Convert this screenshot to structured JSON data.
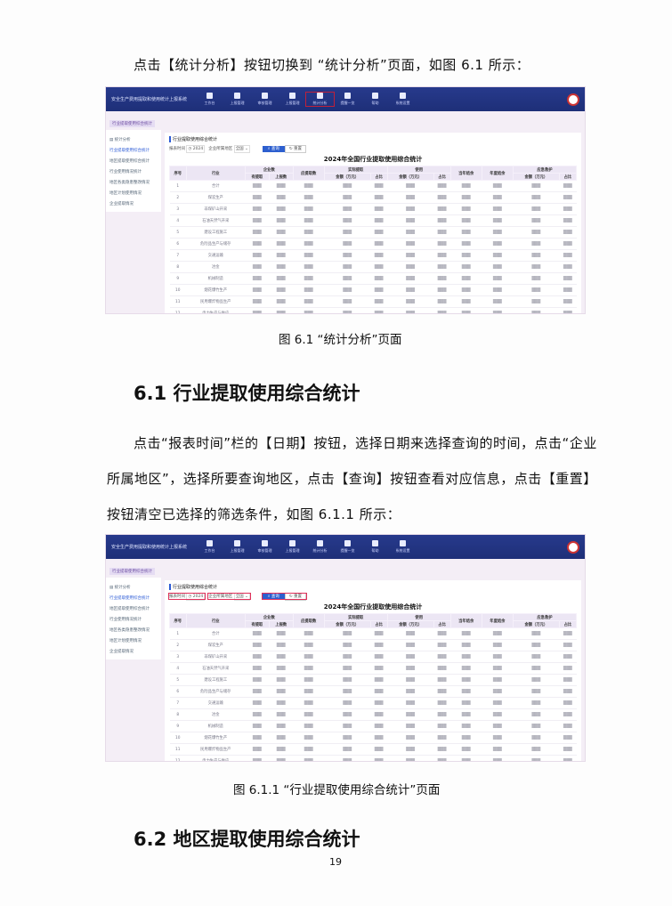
{
  "intro_text": "点击【统计分析】按钮切换到 “统计分析”页面，如图 6.1 所示：",
  "figure1_caption": "图 6.1 “统计分析”页面",
  "section1_heading": "6.1 行业提取使用综合统计",
  "section1_paragraph": [
    "点击“报表时间”栏的【日期】按钮，选择日期来选择查询的时间，点击“企业",
    "所属地区”，选择所要查询地区，点击【查询】按钮查看对应信息，点击【重置】",
    "按钮清空已选择的筛选条件，如图 6.1.1 所示："
  ],
  "figure2_caption": "图 6.1.1 “行业提取使用综合统计”页面",
  "section2_heading": "6.2 地区提取使用综合统计",
  "page_number": "19",
  "app": {
    "system_title": "安全生产费用提取和使用统计上报系统",
    "nav": [
      "工作台",
      "上报管理",
      "审核管理",
      "上报管理",
      "统计分析",
      "提醒一览",
      "帮助",
      "系统设置"
    ],
    "active_nav": 4,
    "breadcrumb": "行业提取使用综合统计",
    "sidebar": [
      "统计分析",
      "行业提取使用综合统计",
      "地区提取使用综合统计",
      "行业使用情况统计",
      "地区各类隐患整改情况",
      "地区计划使用情况",
      "企业提取情况"
    ],
    "panel_title": "行业提取使用综合统计",
    "date_label": "报表时间",
    "date_value": "2024",
    "region_label": "企业所属地区",
    "region_value": "全国",
    "query_label": "查询",
    "reset_label": "重置",
    "table_title": "2024年全国行业提取使用综合统计",
    "headers": [
      "序号",
      "行业",
      "有提取",
      "上报数",
      "应提取数",
      "金额（万元）",
      "占比",
      "金额（万元）",
      "占比",
      "当年结余",
      "年度结余",
      "金额（万元）",
      "占比"
    ],
    "group_headers": [
      "企业数",
      "实际提取",
      "使用",
      "应急救护"
    ],
    "rows": [
      "合计",
      "煤炭生产",
      "非煤矿山开采",
      "石油天然气开采",
      "建设工程施工",
      "危险品生产与储存",
      "交通运输",
      "冶金",
      "机械制造",
      "烟花爆竹生产",
      "民用爆炸物品生产",
      "电力生产与供应"
    ]
  },
  "colors": {
    "nav_bg": "#1e2f78",
    "accent": "#2d5fcf",
    "highlight": "#e0305a"
  }
}
